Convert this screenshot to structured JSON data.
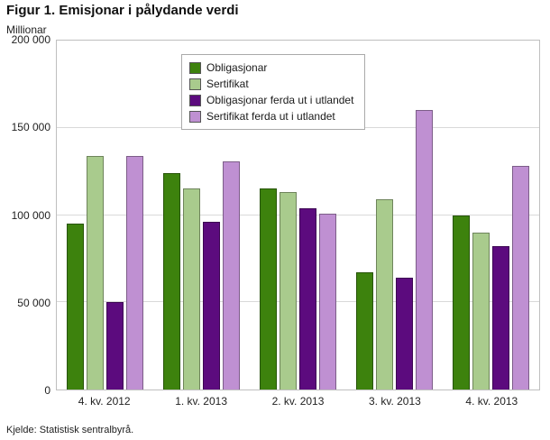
{
  "header": {
    "title": "Figur 1. Emisjonar i pålydande verdi",
    "unit_label": "Millionar"
  },
  "footer": {
    "source": "Kjelde: Statistisk sentralbyrå."
  },
  "chart_data": {
    "type": "bar",
    "title": "Figur 1. Emisjonar i pålydande verdi",
    "xlabel": "",
    "ylabel": "Millionar",
    "ylim": [
      0,
      200000
    ],
    "grid": true,
    "legend_position": "top-inside",
    "yticks": [
      {
        "value": 0,
        "label": "0"
      },
      {
        "value": 50000,
        "label": "50 000"
      },
      {
        "value": 100000,
        "label": "100 000"
      },
      {
        "value": 150000,
        "label": "150 000"
      },
      {
        "value": 200000,
        "label": "200 000"
      }
    ],
    "categories": [
      "4. kv. 2012",
      "1. kv. 2013",
      "2. kv. 2013",
      "3. kv. 2013",
      "4. kv. 2013"
    ],
    "series": [
      {
        "name": "Obligasjonar",
        "color": "#3d820d",
        "values": [
          95000,
          124000,
          115000,
          67000,
          100000
        ]
      },
      {
        "name": "Sertifikat",
        "color": "#a9cb8d",
        "values": [
          134000,
          115000,
          113000,
          109000,
          90000
        ]
      },
      {
        "name": "Obligasjonar ferda ut i utlandet",
        "color": "#5c0b7e",
        "values": [
          50000,
          96000,
          104000,
          64000,
          82000
        ]
      },
      {
        "name": "Sertifikat ferda ut i utlandet",
        "color": "#bf90d2",
        "values": [
          134000,
          131000,
          101000,
          160000,
          128000
        ]
      }
    ]
  }
}
